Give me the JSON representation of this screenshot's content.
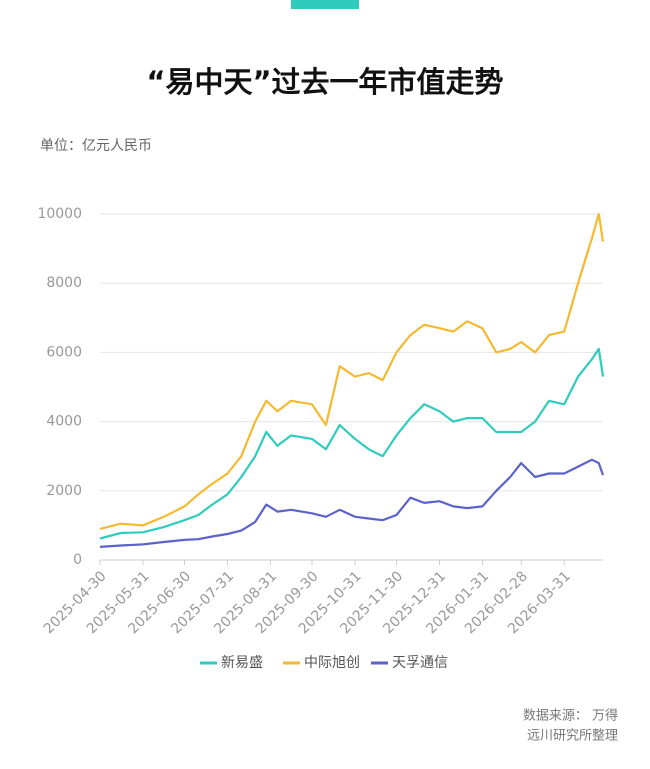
{
  "chart_data": {
    "type": "line",
    "title": "“易中天”过去一年市值走势",
    "unit_label": "单位：亿元人民币",
    "source": "数据来源： 万得",
    "credit": "远川研究所整理",
    "x": [
      "2025-04-30",
      "2025-05-15",
      "2025-05-31",
      "2025-06-15",
      "2025-06-30",
      "2025-07-10",
      "2025-07-20",
      "2025-07-31",
      "2025-08-10",
      "2025-08-20",
      "2025-08-28",
      "2025-09-05",
      "2025-09-15",
      "2025-09-30",
      "2025-10-10",
      "2025-10-20",
      "2025-10-31",
      "2025-11-10",
      "2025-11-20",
      "2025-11-30",
      "2025-12-10",
      "2025-12-20",
      "2025-12-31",
      "2026-01-10",
      "2026-01-20",
      "2026-01-31",
      "2026-02-10",
      "2026-02-20",
      "2026-02-28",
      "2026-03-10",
      "2026-03-20",
      "2026-03-31",
      "2026-04-10",
      "2026-04-20",
      "2026-04-25",
      "2026-04-28"
    ],
    "series": [
      {
        "name": "新易盛",
        "color": "#2fcbbd",
        "values": [
          620,
          780,
          800,
          950,
          1150,
          1300,
          1600,
          1900,
          2400,
          3000,
          3700,
          3300,
          3600,
          3500,
          3200,
          3900,
          3500,
          3200,
          3000,
          3600,
          4100,
          4500,
          4300,
          4000,
          4100,
          4100,
          3700,
          3700,
          3700,
          4000,
          4600,
          4500,
          5300,
          5800,
          6100,
          5300
        ]
      },
      {
        "name": "中际旭创",
        "color": "#f5b930",
        "values": [
          900,
          1050,
          1000,
          1250,
          1550,
          1900,
          2200,
          2500,
          3000,
          4000,
          4600,
          4300,
          4600,
          4500,
          3900,
          5600,
          5300,
          5400,
          5200,
          6000,
          6500,
          6800,
          6700,
          6600,
          6900,
          6700,
          6000,
          6100,
          6300,
          6000,
          6500,
          6600,
          8000,
          9300,
          10000,
          9200
        ]
      },
      {
        "name": "天孚通信",
        "color": "#5b62cc",
        "values": [
          380,
          420,
          450,
          520,
          580,
          600,
          680,
          750,
          850,
          1100,
          1600,
          1400,
          1450,
          1350,
          1250,
          1450,
          1250,
          1200,
          1150,
          1300,
          1800,
          1650,
          1700,
          1550,
          1500,
          1550,
          2000,
          2400,
          2800,
          2400,
          2500,
          2500,
          2700,
          2900,
          2800,
          2450
        ]
      }
    ],
    "xticks": [
      "2025-04-30",
      "2025-05-31",
      "2025-06-30",
      "2025-07-31",
      "2025-08-31",
      "2025-09-30",
      "2025-10-31",
      "2025-11-30",
      "2025-12-31",
      "2026-01-31",
      "2026-02-28",
      "2026-03-31"
    ],
    "ylim": [
      0,
      10000
    ],
    "yticks": [
      0,
      2000,
      4000,
      6000,
      8000,
      10000
    ],
    "grid": true
  }
}
